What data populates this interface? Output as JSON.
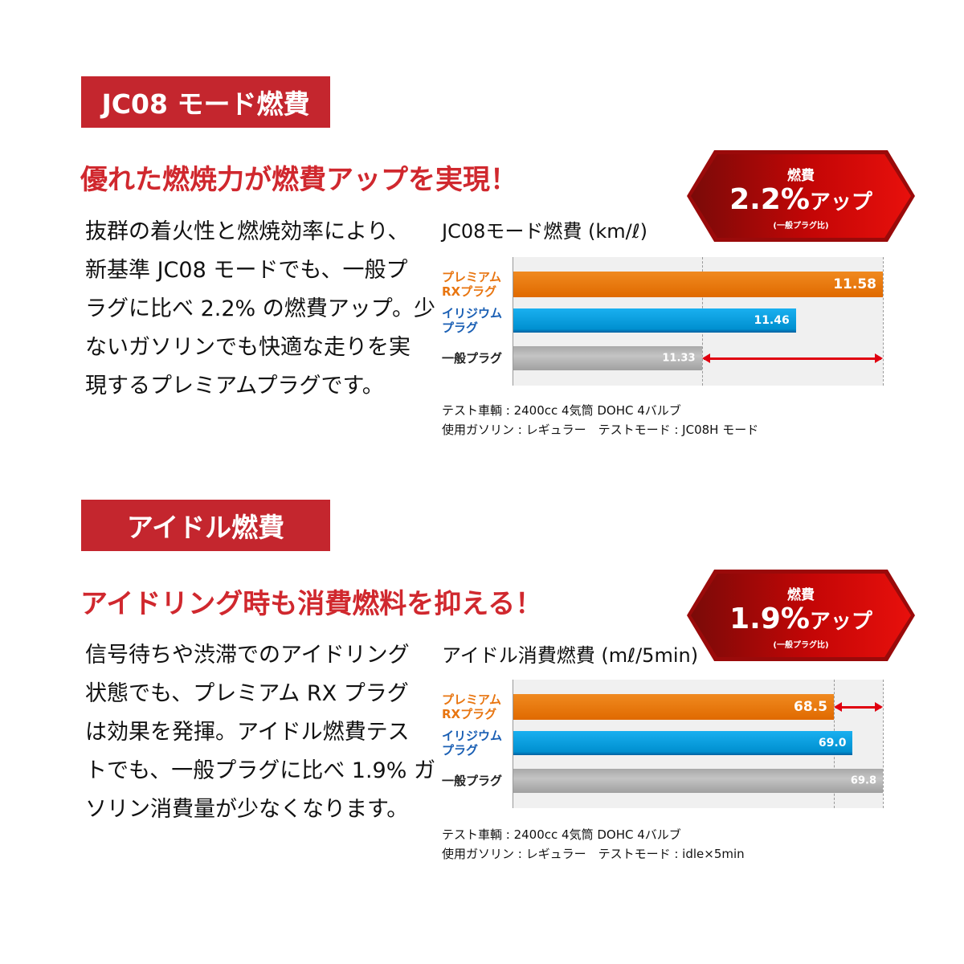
{
  "sections": [
    {
      "header": "JC08 モード燃費",
      "headline": "優れた燃焼力が燃費アップを実現！",
      "body_lines": [
        "抜群の着火性と燃焼効率により、",
        "新基準 JC08 モードでも、一般プ",
        "ラグに比べ 2.2% の燃費アップ。少",
        "ないガソリンでも快適な走りを実",
        "現するプレミアムプラグです。"
      ],
      "badge": {
        "top": "燃費",
        "value": "2.2%",
        "suffix": "アップ",
        "note": "(一般プラグ比)"
      },
      "notes": [
        "テスト車輌 : 2400cc 4気筒 DOHC 4バルブ",
        "使用ガソリン : レギュラー　テストモード : JC08H モード"
      ]
    },
    {
      "header": "アイドル燃費",
      "headline": "アイドリング時も消費燃料を抑える！",
      "body_lines": [
        "信号待ちや渋滞でのアイドリング",
        "状態でも、プレミアム RX プラグ",
        "は効果を発揮。アイドル燃費テス",
        "トでも、一般プラグに比べ 1.9% ガ",
        "ソリン消費量が少なくなります。"
      ],
      "badge": {
        "top": "燃費",
        "value": "1.9%",
        "suffix": "アップ",
        "note": "(一般プラグ比)"
      },
      "notes": [
        "テスト車輌 : 2400cc 4気筒 DOHC 4バルブ",
        "使用ガソリン : レギュラー　テストモード : idle×5min"
      ]
    }
  ],
  "colors": {
    "accent": "#c4262e",
    "rx": "#e87510",
    "iridium": "#0aa0e0",
    "general": "#b8b8b8",
    "arrow": "#e00010"
  },
  "chart_data": [
    {
      "type": "bar",
      "orientation": "horizontal",
      "title": "JC08モード燃費 (km/ℓ)",
      "categories": [
        "プレミアム\nRXプラグ",
        "イリジウム\nプラグ",
        "一般プラグ"
      ],
      "values": [
        11.58,
        11.46,
        11.33
      ],
      "value_labels": [
        "11.58",
        "11.46",
        "11.33"
      ],
      "xlim": [
        11.07,
        11.58
      ],
      "reference_value": 11.33,
      "comparison": [
        11.33,
        11.58
      ]
    },
    {
      "type": "bar",
      "orientation": "horizontal",
      "title": "アイドル消費燃費 (mℓ/5min)",
      "categories": [
        "プレミアム\nRXプラグ",
        "イリジウム\nプラグ",
        "一般プラグ"
      ],
      "values": [
        68.5,
        69.0,
        69.8
      ],
      "value_labels": [
        "68.5",
        "69.0",
        "69.8"
      ],
      "xlim": [
        60,
        69.8
      ],
      "reference_value": 68.5,
      "comparison": [
        68.5,
        69.8
      ]
    }
  ]
}
